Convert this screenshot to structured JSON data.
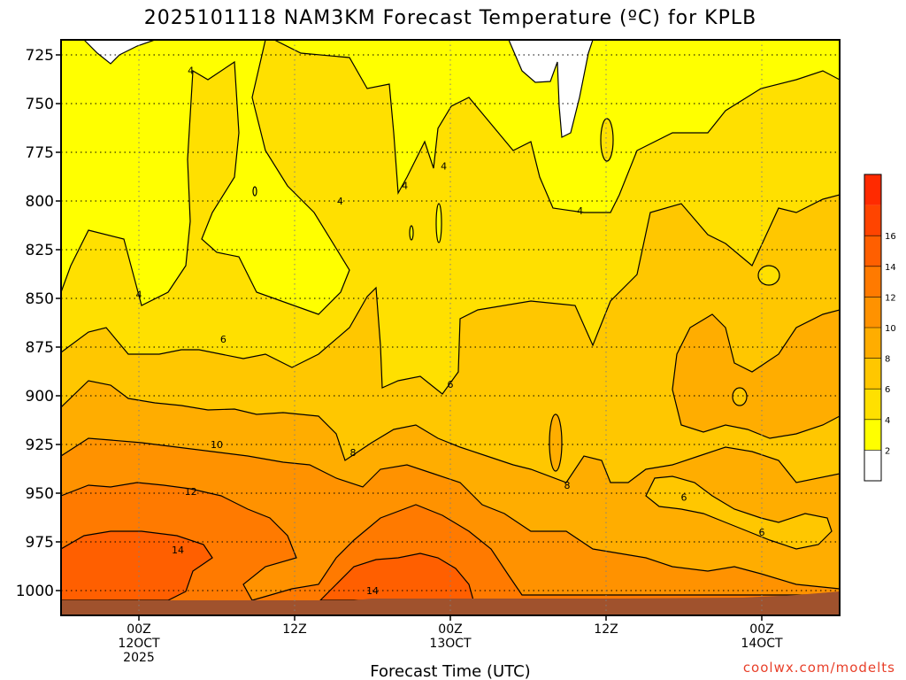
{
  "chart_data": {
    "type": "heatmap",
    "title": "2025101118 NAM3KM Forecast Temperature (ºC) for KPLB",
    "xlabel": "Forecast Time (UTC)",
    "credit": "coolwx.com/modelts",
    "y_ticks": [
      "725",
      "750",
      "775",
      "800",
      "825",
      "850",
      "875",
      "900",
      "925",
      "950",
      "975",
      "1000"
    ],
    "x_ticks": [
      {
        "hour": 6,
        "lines": [
          "00Z",
          "12OCT",
          "2025"
        ]
      },
      {
        "hour": 18,
        "lines": [
          "12Z"
        ]
      },
      {
        "hour": 30,
        "lines": [
          "00Z",
          "13OCT"
        ]
      },
      {
        "hour": 42,
        "lines": [
          "12Z"
        ]
      },
      {
        "hour": 54,
        "lines": [
          "00Z",
          "14OCT"
        ]
      }
    ],
    "xlim_hours": [
      0,
      60
    ],
    "ylim_hpa": [
      713,
      1020
    ],
    "grid": true,
    "colorbar": {
      "ticks": [
        "2",
        "4",
        "6",
        "8",
        "10",
        "12",
        "14",
        "16"
      ],
      "colors": [
        "#ffffff",
        "#ffff00",
        "#ffe000",
        "#ffc700",
        "#ffad00",
        "#ff9200",
        "#ff7a00",
        "#ff5f00",
        "#ff4400",
        "#ff2a00"
      ]
    },
    "contour_labels": [
      {
        "text": "4",
        "hour": 10,
        "hpa": 733
      },
      {
        "text": "4",
        "hour": 21.5,
        "hpa": 800
      },
      {
        "text": "4",
        "hour": 26.5,
        "hpa": 792
      },
      {
        "text": "4",
        "hour": 29.5,
        "hpa": 782
      },
      {
        "text": "4",
        "hour": 40,
        "hpa": 805
      },
      {
        "text": "4",
        "hour": 6,
        "hpa": 848
      },
      {
        "text": "6",
        "hour": 12.5,
        "hpa": 871
      },
      {
        "text": "6",
        "hour": 30,
        "hpa": 894
      },
      {
        "text": "6",
        "hour": 48,
        "hpa": 952
      },
      {
        "text": "6",
        "hour": 54,
        "hpa": 970
      },
      {
        "text": "8",
        "hour": 22.5,
        "hpa": 929
      },
      {
        "text": "8",
        "hour": 39,
        "hpa": 946
      },
      {
        "text": "10",
        "hour": 12,
        "hpa": 925
      },
      {
        "text": "12",
        "hour": 10,
        "hpa": 949
      },
      {
        "text": "14",
        "hour": 9,
        "hpa": 979
      },
      {
        "text": "14",
        "hour": 24,
        "hpa": 1000
      }
    ]
  }
}
